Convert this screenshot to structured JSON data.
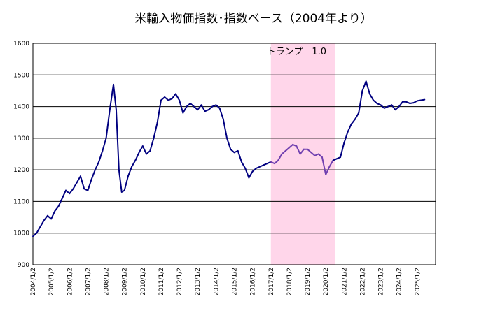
{
  "chart_data": {
    "type": "line",
    "title": "米輸入物価指数･指数ベース（2004年より）",
    "ylim": [
      900,
      1600
    ],
    "yticks": [
      "900",
      "1000",
      "1100",
      "1200",
      "1300",
      "1400",
      "1500",
      "1600"
    ],
    "xlim": [
      2004.0,
      2026.0
    ],
    "xticks": [
      "2004/1/2",
      "2005/1/2",
      "2006/1/2",
      "2007/1/2",
      "2008/1/2",
      "2009/1/2",
      "2010/1/2",
      "2011/1/2",
      "2012/1/2",
      "2013/1/2",
      "2014/1/2",
      "2015/1/2",
      "2016/1/2",
      "2017/1/2",
      "2018/1/2",
      "2019/1/2",
      "2020/1/2",
      "2021/1/2",
      "2022/1/2",
      "2023/1/2",
      "2024/1/2",
      "2025/1/2"
    ],
    "grid": "horizontal",
    "annotation": {
      "label": "トランプ　1.0",
      "start": 2017.0,
      "end": 2020.5,
      "color": "#ffd6ea"
    },
    "series": [
      {
        "color": "#000080",
        "highlight_color": "#7040b0",
        "x": [
          2004.0,
          2004.2,
          2004.4,
          2004.6,
          2004.8,
          2005.0,
          2005.2,
          2005.4,
          2005.6,
          2005.8,
          2006.0,
          2006.2,
          2006.4,
          2006.6,
          2006.8,
          2007.0,
          2007.2,
          2007.4,
          2007.6,
          2007.8,
          2008.0,
          2008.2,
          2008.4,
          2008.55,
          2008.7,
          2008.85,
          2009.0,
          2009.2,
          2009.4,
          2009.6,
          2009.8,
          2010.0,
          2010.2,
          2010.4,
          2010.6,
          2010.8,
          2011.0,
          2011.2,
          2011.4,
          2011.6,
          2011.8,
          2012.0,
          2012.2,
          2012.4,
          2012.6,
          2012.8,
          2013.0,
          2013.2,
          2013.4,
          2013.6,
          2013.8,
          2014.0,
          2014.2,
          2014.4,
          2014.6,
          2014.8,
          2015.0,
          2015.2,
          2015.4,
          2015.6,
          2015.8,
          2016.0,
          2016.2,
          2016.4,
          2016.6,
          2016.8,
          2017.0,
          2017.2,
          2017.4,
          2017.6,
          2017.8,
          2018.0,
          2018.2,
          2018.4,
          2018.6,
          2018.8,
          2019.0,
          2019.2,
          2019.4,
          2019.6,
          2019.8,
          2020.0,
          2020.2,
          2020.4,
          2020.6,
          2020.8,
          2021.0,
          2021.2,
          2021.4,
          2021.6,
          2021.8,
          2022.0,
          2022.2,
          2022.4,
          2022.6,
          2022.8,
          2023.0,
          2023.2,
          2023.4,
          2023.6,
          2023.8,
          2024.0,
          2024.2,
          2024.4,
          2024.6,
          2024.8,
          2025.0,
          2025.2,
          2025.4
        ],
        "values": [
          990,
          1000,
          1020,
          1040,
          1055,
          1045,
          1070,
          1085,
          1110,
          1135,
          1125,
          1140,
          1160,
          1180,
          1140,
          1135,
          1170,
          1200,
          1225,
          1260,
          1300,
          1390,
          1470,
          1390,
          1200,
          1130,
          1135,
          1180,
          1210,
          1230,
          1255,
          1275,
          1250,
          1260,
          1300,
          1350,
          1420,
          1430,
          1420,
          1425,
          1440,
          1420,
          1380,
          1400,
          1410,
          1400,
          1390,
          1405,
          1385,
          1390,
          1400,
          1405,
          1395,
          1360,
          1300,
          1265,
          1255,
          1260,
          1225,
          1205,
          1175,
          1195,
          1205,
          1210,
          1215,
          1220,
          1225,
          1220,
          1230,
          1250,
          1260,
          1270,
          1280,
          1275,
          1250,
          1265,
          1265,
          1255,
          1245,
          1250,
          1240,
          1185,
          1210,
          1230,
          1235,
          1240,
          1285,
          1320,
          1345,
          1360,
          1380,
          1450,
          1480,
          1440,
          1420,
          1410,
          1405,
          1395,
          1400,
          1405,
          1390,
          1400,
          1415,
          1415,
          1410,
          1412,
          1418,
          1420,
          1422
        ]
      }
    ]
  }
}
